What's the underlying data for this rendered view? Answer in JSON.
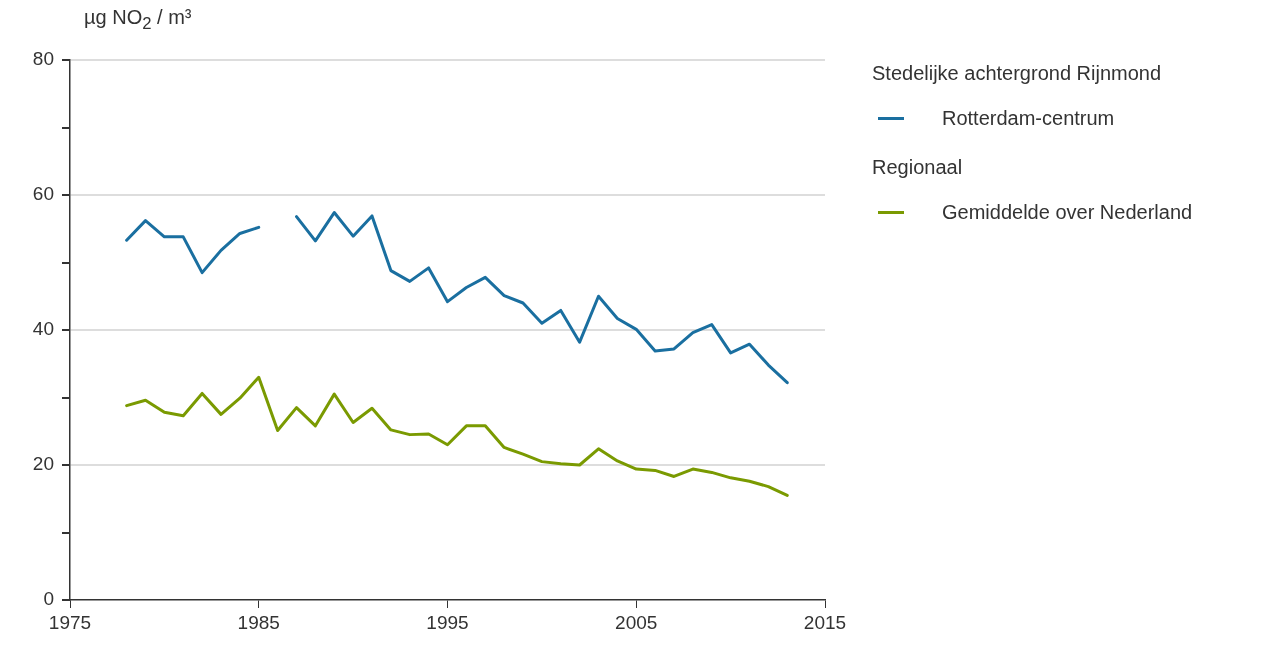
{
  "chart_data": {
    "type": "line",
    "ylabel": "µg NO$_{2}$ / m³",
    "x": [
      1978,
      1979,
      1980,
      1981,
      1982,
      1983,
      1984,
      1985,
      1986,
      1987,
      1988,
      1989,
      1990,
      1991,
      1992,
      1993,
      1994,
      1995,
      1996,
      1997,
      1998,
      1999,
      2000,
      2001,
      2002,
      2003,
      2004,
      2005,
      2006,
      2007,
      2008,
      2009,
      2010,
      2011,
      2012,
      2013
    ],
    "series": [
      {
        "name": "Rotterdam-centrum",
        "color": "#1a6fa0",
        "values": [
          53.3,
          56.2,
          53.8,
          53.8,
          48.5,
          51.8,
          54.3,
          55.2,
          null,
          56.8,
          53.2,
          57.4,
          53.9,
          56.9,
          48.8,
          47.2,
          49.2,
          44.2,
          46.3,
          47.8,
          45.1,
          44.0,
          41.0,
          42.9,
          38.2,
          45.0,
          41.7,
          40.1,
          36.9,
          37.2,
          39.6,
          40.8,
          36.6,
          37.9,
          34.8,
          32.2
        ]
      },
      {
        "name": "Gemiddelde over Nederland",
        "color": "#7a9a01",
        "values": [
          28.8,
          29.6,
          27.8,
          27.3,
          30.6,
          27.5,
          29.9,
          33.0,
          25.1,
          28.5,
          25.8,
          30.5,
          26.3,
          28.4,
          25.2,
          24.5,
          24.6,
          23.0,
          25.8,
          25.8,
          22.6,
          21.6,
          20.5,
          20.2,
          20.0,
          22.4,
          20.6,
          19.4,
          19.2,
          18.3,
          19.4,
          18.9,
          18.1,
          17.6,
          16.8,
          15.5
        ]
      }
    ],
    "annotations": [
      "Stedelijke achtergrond Rijnmond",
      "Regionaal"
    ],
    "xlim": [
      1975,
      2015
    ],
    "xticks": [
      1975,
      1985,
      1995,
      2005,
      2015
    ],
    "ylim": [
      0,
      80
    ],
    "yticks": [
      0,
      {
        "value": 10,
        "label": null
      },
      20,
      {
        "value": 30,
        "label": null
      },
      40,
      {
        "value": 50,
        "label": null
      },
      60,
      {
        "value": 70,
        "label": null
      },
      80
    ],
    "grid": "y",
    "legend": "right",
    "marker": "none",
    "line_style": "solid"
  }
}
